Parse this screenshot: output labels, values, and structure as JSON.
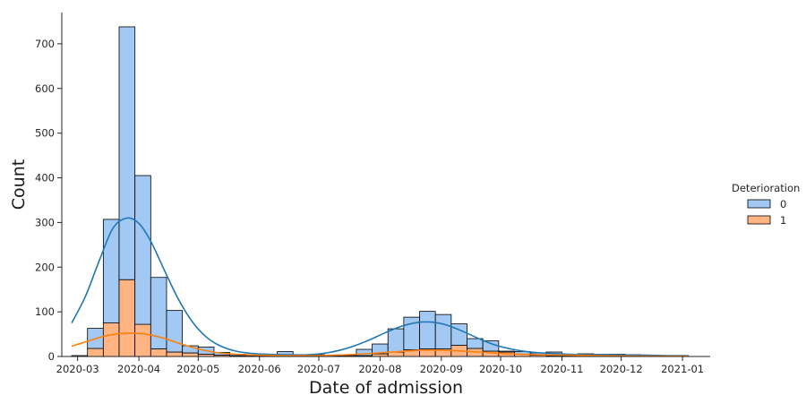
{
  "chart_data": {
    "type": "bar",
    "stacked": true,
    "xlabel": "Date of admission",
    "ylabel": "Count",
    "yticks": [
      0,
      100,
      200,
      300,
      400,
      500,
      600,
      700
    ],
    "ylim": [
      0,
      770
    ],
    "xticks": [
      "2020-03",
      "2020-04",
      "2020-05",
      "2020-06",
      "2020-07",
      "2020-08",
      "2020-09",
      "2020-10",
      "2020-11",
      "2020-12",
      "2021-01"
    ],
    "xlim": [
      "2020-02-22",
      "2021-01-15"
    ],
    "bin_edges": [
      "2020-02-27",
      "2020-03-06",
      "2020-03-14",
      "2020-03-22",
      "2020-03-30",
      "2020-04-07",
      "2020-04-15",
      "2020-04-23",
      "2020-05-01",
      "2020-05-09",
      "2020-05-17",
      "2020-05-25",
      "2020-06-02",
      "2020-06-10",
      "2020-06-18",
      "2020-06-26",
      "2020-07-04",
      "2020-07-12",
      "2020-07-20",
      "2020-07-28",
      "2020-08-05",
      "2020-08-13",
      "2020-08-21",
      "2020-08-29",
      "2020-09-06",
      "2020-09-14",
      "2020-09-22",
      "2020-09-30",
      "2020-10-08",
      "2020-10-16",
      "2020-10-24",
      "2020-11-01",
      "2020-11-09",
      "2020-11-17",
      "2020-11-25",
      "2020-12-03",
      "2020-12-11",
      "2020-12-19",
      "2020-12-27",
      "2021-01-04"
    ],
    "legend": {
      "title": "Deterioration",
      "placement": "right"
    },
    "series": [
      {
        "name": "1",
        "color": "#ffb482",
        "edge": "#000000",
        "values": [
          2,
          18,
          75,
          172,
          72,
          17,
          10,
          8,
          5,
          3,
          2,
          1,
          1,
          2,
          1,
          1,
          1,
          1,
          2,
          6,
          10,
          15,
          17,
          17,
          25,
          18,
          12,
          10,
          5,
          3,
          2,
          2,
          1,
          1,
          1,
          1,
          1,
          0,
          1
        ]
      },
      {
        "name": "0",
        "color": "#a1c9f4",
        "edge": "#000000",
        "values": [
          0,
          45,
          232,
          566,
          333,
          160,
          93,
          16,
          16,
          6,
          3,
          2,
          1,
          9,
          2,
          3,
          1,
          2,
          14,
          22,
          52,
          73,
          84,
          77,
          48,
          22,
          23,
          2,
          6,
          5,
          8,
          3,
          5,
          4,
          4,
          3,
          2,
          1,
          1
        ]
      }
    ],
    "kde": [
      {
        "name": "0",
        "color": "#1f77b4",
        "points": [
          [
            "2020-02-27",
            75
          ],
          [
            "2020-03-05",
            135
          ],
          [
            "2020-03-12",
            215
          ],
          [
            "2020-03-19",
            288
          ],
          [
            "2020-03-26",
            310
          ],
          [
            "2020-04-01",
            298
          ],
          [
            "2020-04-07",
            258
          ],
          [
            "2020-04-14",
            192
          ],
          [
            "2020-04-21",
            128
          ],
          [
            "2020-04-28",
            78
          ],
          [
            "2020-05-05",
            44
          ],
          [
            "2020-05-12",
            24
          ],
          [
            "2020-05-20",
            12
          ],
          [
            "2020-05-28",
            7
          ],
          [
            "2020-06-05",
            5
          ],
          [
            "2020-06-15",
            4
          ],
          [
            "2020-06-25",
            4
          ],
          [
            "2020-07-05",
            8
          ],
          [
            "2020-07-15",
            18
          ],
          [
            "2020-07-25",
            34
          ],
          [
            "2020-08-04",
            54
          ],
          [
            "2020-08-12",
            68
          ],
          [
            "2020-08-20",
            76
          ],
          [
            "2020-08-27",
            77
          ],
          [
            "2020-09-04",
            70
          ],
          [
            "2020-09-12",
            56
          ],
          [
            "2020-09-20",
            40
          ],
          [
            "2020-09-28",
            26
          ],
          [
            "2020-10-07",
            16
          ],
          [
            "2020-10-16",
            10
          ],
          [
            "2020-10-26",
            7
          ],
          [
            "2020-11-05",
            5
          ],
          [
            "2020-11-15",
            4
          ],
          [
            "2020-11-25",
            4
          ],
          [
            "2020-12-05",
            3
          ],
          [
            "2020-12-15",
            3
          ],
          [
            "2020-12-25",
            2
          ],
          [
            "2021-01-04",
            2
          ]
        ]
      },
      {
        "name": "1",
        "color": "#ff7f0e",
        "points": [
          [
            "2020-02-27",
            23
          ],
          [
            "2020-03-06",
            34
          ],
          [
            "2020-03-14",
            45
          ],
          [
            "2020-03-22",
            51
          ],
          [
            "2020-03-30",
            52
          ],
          [
            "2020-04-07",
            48
          ],
          [
            "2020-04-15",
            39
          ],
          [
            "2020-04-23",
            27
          ],
          [
            "2020-05-01",
            17
          ],
          [
            "2020-05-10",
            9
          ],
          [
            "2020-05-20",
            5
          ],
          [
            "2020-06-01",
            3
          ],
          [
            "2020-06-15",
            2
          ],
          [
            "2020-07-01",
            2
          ],
          [
            "2020-07-15",
            4
          ],
          [
            "2020-07-28",
            7
          ],
          [
            "2020-08-10",
            11
          ],
          [
            "2020-08-22",
            14
          ],
          [
            "2020-09-01",
            14
          ],
          [
            "2020-09-12",
            12
          ],
          [
            "2020-09-24",
            9
          ],
          [
            "2020-10-06",
            6
          ],
          [
            "2020-10-20",
            4
          ],
          [
            "2020-11-05",
            3
          ],
          [
            "2020-11-20",
            2
          ],
          [
            "2020-12-10",
            1
          ],
          [
            "2021-01-04",
            1
          ]
        ]
      }
    ]
  }
}
